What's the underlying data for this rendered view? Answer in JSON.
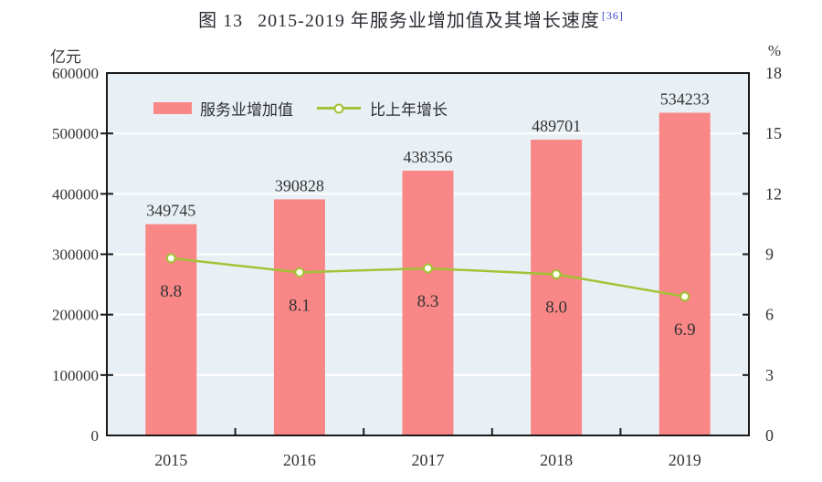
{
  "title": {
    "prefix": "图 13",
    "text": "2015-2019 年服务业增加值及其增长速度",
    "footnote_ref": "[36]"
  },
  "legend": [
    {
      "label": "服务业增加值",
      "symbol": "bar-swatch"
    },
    {
      "label": "比上年增长",
      "symbol": "line-marker"
    }
  ],
  "colors": {
    "bar": "#f98787",
    "line": "#a3c235",
    "marker_fill": "#fdfff0",
    "plot_background": "#e9f0f5",
    "gridline": "#ffffff",
    "axis": "#1a1a1a",
    "text": "#333333",
    "footnote": "#3344cc"
  },
  "chart_data": {
    "type": "bar",
    "subtype": "bar+line combo, dual axis",
    "title": "图 13 2015-2019 年服务业增加值及其增长速度",
    "categories": [
      "2015",
      "2016",
      "2017",
      "2018",
      "2019"
    ],
    "series": [
      {
        "name": "服务业增加值",
        "type": "bar",
        "axis": "left",
        "values": [
          349745,
          390828,
          438356,
          489701,
          534233
        ]
      },
      {
        "name": "比上年增长",
        "type": "line",
        "axis": "right",
        "values": [
          8.8,
          8.1,
          8.3,
          8.0,
          6.9
        ]
      }
    ],
    "left_axis": {
      "unit": "亿元",
      "range": [
        0,
        600000
      ],
      "ticks": [
        0,
        100000,
        200000,
        300000,
        400000,
        500000,
        600000
      ]
    },
    "right_axis": {
      "unit": "%",
      "range": [
        0,
        18
      ],
      "ticks": [
        0,
        3,
        6,
        9,
        12,
        15,
        18
      ]
    },
    "grid": true,
    "legend_position": "top-left-inside"
  }
}
